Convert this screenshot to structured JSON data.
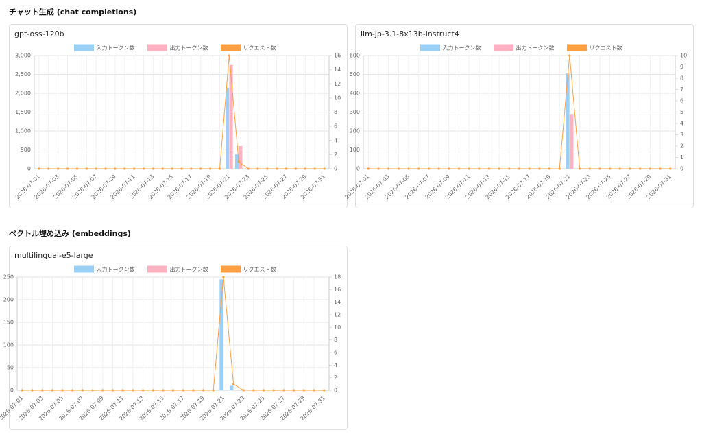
{
  "headings": [
    "チャット生成 (chat completions)",
    "ベクトル埋め込み (embeddings)"
  ],
  "chart_data": [
    {
      "type": "bar",
      "title": "gpt-oss-120b",
      "categories": [
        "2026-07-01",
        null,
        "2026-07-03",
        null,
        "2026-07-05",
        null,
        "2026-07-07",
        null,
        "2026-07-09",
        null,
        "2026-07-11",
        null,
        "2026-07-13",
        null,
        "2026-07-15",
        null,
        "2026-07-17",
        null,
        "2026-07-19",
        null,
        "2026-07-21",
        null,
        "2026-07-23",
        null,
        "2026-07-25",
        null,
        "2026-07-27",
        null,
        "2026-07-29",
        null,
        "2026-07-31"
      ],
      "series": [
        {
          "name": "入力トークン数",
          "color": "#9ad0f5",
          "values": [
            0,
            0,
            0,
            0,
            0,
            0,
            0,
            0,
            0,
            0,
            0,
            0,
            0,
            0,
            0,
            0,
            0,
            0,
            0,
            0,
            2150,
            380,
            0,
            0,
            0,
            0,
            0,
            0,
            0,
            0,
            0
          ]
        },
        {
          "name": "出力トークン数",
          "color": "#ffb1c1",
          "values": [
            0,
            0,
            0,
            0,
            0,
            0,
            0,
            0,
            0,
            0,
            0,
            0,
            0,
            0,
            0,
            0,
            0,
            0,
            0,
            0,
            2750,
            600,
            0,
            0,
            0,
            0,
            0,
            0,
            0,
            0,
            0
          ]
        },
        {
          "name": "リクエスト数",
          "color": "#ff9f40",
          "type": "line",
          "axis": "y2",
          "values": [
            0,
            0,
            0,
            0,
            0,
            0,
            0,
            0,
            0,
            0,
            0,
            0,
            0,
            0,
            0,
            0,
            0,
            0,
            0,
            0,
            16,
            1,
            0,
            0,
            0,
            0,
            0,
            0,
            0,
            0,
            0
          ]
        }
      ],
      "ylim": [
        0,
        3000
      ],
      "yticks": [
        0,
        500,
        {
          "value": 1000,
          "label": "1,000"
        },
        {
          "value": 1500,
          "label": "1,500"
        },
        {
          "value": 2000,
          "label": "2,000"
        },
        {
          "value": 2500,
          "label": "2,500"
        },
        {
          "value": 3000,
          "label": "3,000"
        }
      ],
      "y2lim": [
        0,
        16
      ],
      "y2ticks": [
        0,
        2,
        4,
        6,
        8,
        10,
        12,
        14,
        16
      ],
      "grid": true,
      "legend": "top"
    },
    {
      "type": "bar",
      "title": "llm-jp-3.1-8x13b-instruct4",
      "categories": [
        "2026-07-01",
        null,
        "2026-07-03",
        null,
        "2026-07-05",
        null,
        "2026-07-07",
        null,
        "2026-07-09",
        null,
        "2026-07-11",
        null,
        "2026-07-13",
        null,
        "2026-07-15",
        null,
        "2026-07-17",
        null,
        "2026-07-19",
        null,
        "2026-07-21",
        null,
        "2026-07-23",
        null,
        "2026-07-25",
        null,
        "2026-07-27",
        null,
        "2026-07-29",
        null,
        "2026-07-31"
      ],
      "series": [
        {
          "name": "入力トークン数",
          "color": "#9ad0f5",
          "values": [
            0,
            0,
            0,
            0,
            0,
            0,
            0,
            0,
            0,
            0,
            0,
            0,
            0,
            0,
            0,
            0,
            0,
            0,
            0,
            0,
            505,
            0,
            0,
            0,
            0,
            0,
            0,
            0,
            0,
            0,
            0
          ]
        },
        {
          "name": "出力トークン数",
          "color": "#ffb1c1",
          "values": [
            0,
            0,
            0,
            0,
            0,
            0,
            0,
            0,
            0,
            0,
            0,
            0,
            0,
            0,
            0,
            0,
            0,
            0,
            0,
            0,
            290,
            0,
            0,
            0,
            0,
            0,
            0,
            0,
            0,
            0,
            0
          ]
        },
        {
          "name": "リクエスト数",
          "color": "#ff9f40",
          "type": "line",
          "axis": "y2",
          "values": [
            0,
            0,
            0,
            0,
            0,
            0,
            0,
            0,
            0,
            0,
            0,
            0,
            0,
            0,
            0,
            0,
            0,
            0,
            0,
            0,
            10,
            0,
            0,
            0,
            0,
            0,
            0,
            0,
            0,
            0,
            0
          ]
        }
      ],
      "ylim": [
        0,
        600
      ],
      "yticks": [
        0,
        100,
        200,
        300,
        400,
        500,
        600
      ],
      "y2lim": [
        0,
        10
      ],
      "y2ticks": [
        0,
        1,
        2,
        3,
        4,
        5,
        6,
        7,
        8,
        9,
        10
      ],
      "grid": true,
      "legend": "top"
    },
    {
      "type": "bar",
      "title": "multilingual-e5-large",
      "categories": [
        "2026-07-01",
        null,
        "2026-07-03",
        null,
        "2026-07-05",
        null,
        "2026-07-07",
        null,
        "2026-07-09",
        null,
        "2026-07-11",
        null,
        "2026-07-13",
        null,
        "2026-07-15",
        null,
        "2026-07-17",
        null,
        "2026-07-19",
        null,
        "2026-07-21",
        null,
        "2026-07-23",
        null,
        "2026-07-25",
        null,
        "2026-07-27",
        null,
        "2026-07-29",
        null,
        "2026-07-31"
      ],
      "series": [
        {
          "name": "入力トークン数",
          "color": "#9ad0f5",
          "values": [
            0,
            0,
            0,
            0,
            0,
            0,
            0,
            0,
            0,
            0,
            0,
            0,
            0,
            0,
            0,
            0,
            0,
            0,
            0,
            0,
            245,
            10,
            0,
            0,
            0,
            0,
            0,
            0,
            0,
            0,
            0
          ]
        },
        {
          "name": "出力トークン数",
          "color": "#ffb1c1",
          "values": [
            0,
            0,
            0,
            0,
            0,
            0,
            0,
            0,
            0,
            0,
            0,
            0,
            0,
            0,
            0,
            0,
            0,
            0,
            0,
            0,
            0,
            0,
            0,
            0,
            0,
            0,
            0,
            0,
            0,
            0,
            0
          ]
        },
        {
          "name": "リクエスト数",
          "color": "#ff9f40",
          "type": "line",
          "axis": "y2",
          "values": [
            0,
            0,
            0,
            0,
            0,
            0,
            0,
            0,
            0,
            0,
            0,
            0,
            0,
            0,
            0,
            0,
            0,
            0,
            0,
            0,
            18,
            1,
            0,
            0,
            0,
            0,
            0,
            0,
            0,
            0,
            0
          ]
        }
      ],
      "ylim": [
        0,
        250
      ],
      "yticks": [
        0,
        50,
        100,
        150,
        200,
        250
      ],
      "y2lim": [
        0,
        18
      ],
      "y2ticks": [
        0,
        2,
        4,
        6,
        8,
        10,
        12,
        14,
        16,
        18
      ],
      "grid": true,
      "legend": "top"
    }
  ]
}
